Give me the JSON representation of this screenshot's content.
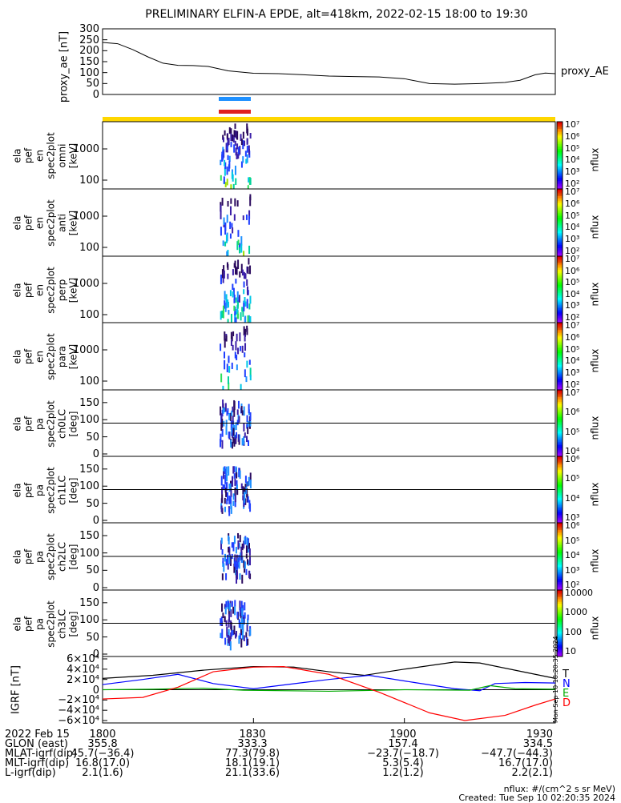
{
  "title": "PRELIMINARY ELFIN-A EPDE, alt=418km, 2022-02-15 18:00 to 19:30",
  "chart_data": [
    {
      "type": "line",
      "ylabel": "proxy_ae [nT]",
      "series_label": "proxy_AE",
      "ylim": [
        0,
        300
      ],
      "yticks": [
        "300",
        "250",
        "200",
        "150",
        "100",
        "50",
        "0"
      ],
      "xlim_min": [
        0,
        90
      ],
      "points": [
        [
          0,
          238
        ],
        [
          3,
          232
        ],
        [
          6,
          205
        ],
        [
          9,
          172
        ],
        [
          12,
          143
        ],
        [
          15,
          133
        ],
        [
          18,
          132
        ],
        [
          21,
          128
        ],
        [
          25,
          108
        ],
        [
          30,
          97
        ],
        [
          35,
          95
        ],
        [
          40,
          90
        ],
        [
          45,
          84
        ],
        [
          50,
          82
        ],
        [
          55,
          80
        ],
        [
          60,
          72
        ],
        [
          65,
          50
        ],
        [
          70,
          47
        ],
        [
          75,
          50
        ],
        [
          80,
          55
        ],
        [
          83,
          65
        ],
        [
          86,
          90
        ],
        [
          88,
          98
        ],
        [
          90,
          95
        ]
      ]
    },
    {
      "type": "heatmap",
      "name": "ela pef en spec2plot omni",
      "ylabel_lines": [
        "ela",
        "pef",
        "en",
        "spec2plot",
        "omni",
        "[keV]"
      ],
      "yticks": [
        "1000",
        "100"
      ],
      "colorbar_label": "nflux",
      "colorbar_ticks": [
        "10⁷",
        "10⁶",
        "10⁵",
        "10⁴",
        "10³",
        "10²"
      ]
    },
    {
      "type": "heatmap",
      "name": "ela pef en spec2plot anti",
      "ylabel_lines": [
        "ela",
        "pef",
        "en",
        "spec2plot",
        "anti",
        "[keV]"
      ],
      "yticks": [
        "1000",
        "100"
      ],
      "colorbar_label": "nflux",
      "colorbar_ticks": [
        "10⁷",
        "10⁶",
        "10⁵",
        "10⁴",
        "10³",
        "10²"
      ]
    },
    {
      "type": "heatmap",
      "name": "ela pef en spec2plot perp",
      "ylabel_lines": [
        "ela",
        "pef",
        "en",
        "spec2plot",
        "perp",
        "[keV]"
      ],
      "yticks": [
        "1000",
        "100"
      ],
      "colorbar_label": "nflux",
      "colorbar_ticks": [
        "10⁷",
        "10⁶",
        "10⁵",
        "10⁴",
        "10³",
        "10²"
      ]
    },
    {
      "type": "heatmap",
      "name": "ela pef en spec2plot para",
      "ylabel_lines": [
        "ela",
        "pef",
        "en",
        "spec2plot",
        "para",
        "[keV]"
      ],
      "yticks": [
        "1000",
        "100"
      ],
      "colorbar_label": "nflux",
      "colorbar_ticks": [
        "10⁷",
        "10⁶",
        "10⁵",
        "10⁴",
        "10³",
        "10²"
      ]
    },
    {
      "type": "heatmap",
      "name": "ela pef pa spec2plot ch0LC",
      "ylabel_lines": [
        "ela",
        "pef",
        "pa",
        "spec2plot",
        "ch0LC",
        "[deg]"
      ],
      "ylim": [
        0,
        180
      ],
      "yticks": [
        "150",
        "100",
        "50",
        "0"
      ],
      "colorbar_label": "nflux",
      "colorbar_ticks": [
        "10⁷",
        "10⁶",
        "10⁵",
        "10⁴"
      ]
    },
    {
      "type": "heatmap",
      "name": "ela pef pa spec2plot ch1LC",
      "ylabel_lines": [
        "ela",
        "pef",
        "pa",
        "spec2plot",
        "ch1LC",
        "[deg]"
      ],
      "ylim": [
        0,
        180
      ],
      "yticks": [
        "150",
        "100",
        "50",
        "0"
      ],
      "colorbar_label": "nflux",
      "colorbar_ticks": [
        "10⁶",
        "10⁵",
        "10⁴",
        "10³"
      ]
    },
    {
      "type": "heatmap",
      "name": "ela pef pa spec2plot ch2LC",
      "ylabel_lines": [
        "ela",
        "pef",
        "pa",
        "spec2plot",
        "ch2LC",
        "[deg]"
      ],
      "ylim": [
        0,
        180
      ],
      "yticks": [
        "150",
        "100",
        "50",
        "0"
      ],
      "colorbar_label": "nflux",
      "colorbar_ticks": [
        "10⁶",
        "10⁵",
        "10⁴",
        "10³",
        "10²"
      ]
    },
    {
      "type": "heatmap",
      "name": "ela pef pa spec2plot ch3LC",
      "ylabel_lines": [
        "ela",
        "pef",
        "pa",
        "spec2plot",
        "ch3LC",
        "[deg]"
      ],
      "ylim": [
        0,
        180
      ],
      "yticks": [
        "150",
        "100",
        "50",
        "0"
      ],
      "colorbar_label": "nflux",
      "colorbar_ticks": [
        "10000",
        "1000",
        "100",
        "10"
      ]
    },
    {
      "type": "line",
      "ylabel": "IGRF [nT]",
      "ylim": [
        -60000,
        60000
      ],
      "yticks": [
        "6×10⁴",
        "4×10⁴",
        "2×10⁴",
        "0",
        "−2×10⁴",
        "−4×10⁴",
        "−6×10⁴"
      ],
      "legend": [
        "T",
        "N",
        "E",
        "D"
      ],
      "series": [
        {
          "name": "T",
          "color": "#000000",
          "points": [
            [
              0,
              22000
            ],
            [
              10,
              28000
            ],
            [
              20,
              38000
            ],
            [
              30,
              45000
            ],
            [
              38,
              44000
            ],
            [
              45,
              35000
            ],
            [
              52,
              28000
            ],
            [
              60,
              40000
            ],
            [
              70,
              54000
            ],
            [
              75,
              52000
            ],
            [
              82,
              38000
            ],
            [
              90,
              22000
            ]
          ]
        },
        {
          "name": "N",
          "color": "#0000ff",
          "points": [
            [
              0,
              10000
            ],
            [
              8,
              20000
            ],
            [
              15,
              30000
            ],
            [
              22,
              12000
            ],
            [
              30,
              2000
            ],
            [
              35,
              8000
            ],
            [
              45,
              20000
            ],
            [
              53,
              28000
            ],
            [
              62,
              14000
            ],
            [
              70,
              2000
            ],
            [
              75,
              -2000
            ],
            [
              78,
              12000
            ],
            [
              84,
              14000
            ],
            [
              90,
              13000
            ]
          ]
        },
        {
          "name": "E",
          "color": "#00aa00",
          "points": [
            [
              0,
              0
            ],
            [
              10,
              1000
            ],
            [
              20,
              3000
            ],
            [
              28,
              -1000
            ],
            [
              45,
              -3000
            ],
            [
              60,
              0
            ],
            [
              73,
              -1000
            ],
            [
              77,
              8000
            ],
            [
              82,
              2000
            ],
            [
              90,
              1000
            ]
          ]
        },
        {
          "name": "D",
          "color": "#ff0000",
          "points": [
            [
              0,
              -18000
            ],
            [
              8,
              -15000
            ],
            [
              15,
              5000
            ],
            [
              22,
              35000
            ],
            [
              30,
              44000
            ],
            [
              36,
              45000
            ],
            [
              45,
              30000
            ],
            [
              55,
              -5000
            ],
            [
              65,
              -45000
            ],
            [
              72,
              -60000
            ],
            [
              80,
              -50000
            ],
            [
              86,
              -30000
            ],
            [
              90,
              -18000
            ]
          ]
        }
      ]
    }
  ],
  "ephem": {
    "rows": [
      {
        "label": "2022 Feb 15",
        "vals": [
          "1800",
          "1830",
          "1900",
          "1930"
        ]
      },
      {
        "label": "GLON (east)",
        "vals": [
          "355.8",
          "333.3",
          "157.4",
          "334.5"
        ]
      },
      {
        "label": "MLAT-igrf(dip)",
        "vals": [
          "45.7(−36.4)",
          "77.3(79.8)",
          "−23.7(−18.7)",
          "−47.7(−44.3)"
        ]
      },
      {
        "label": "MLT-igrf(dip)",
        "vals": [
          "16.8(17.0)",
          "18.1(19.1)",
          "5.3(5.4)",
          "16.7(17.0)"
        ]
      },
      {
        "label": "L-igrf(dip)",
        "vals": [
          "2.1(1.6)",
          "21.1(33.6)",
          "1.2(1.2)",
          "2.2(2.1)"
        ]
      }
    ]
  },
  "footer": {
    "units": "nflux: #/(cm^2 s sr MeV)",
    "created": "Created: Tue Sep 10 02:20:35 2024",
    "vertical_stamp": "Mon Sep 10 18:20:35 2024"
  },
  "colors": {
    "yellow_bar": "#ffd700",
    "blue_bar": "#1e90ff",
    "red_bar": "#e02020"
  }
}
